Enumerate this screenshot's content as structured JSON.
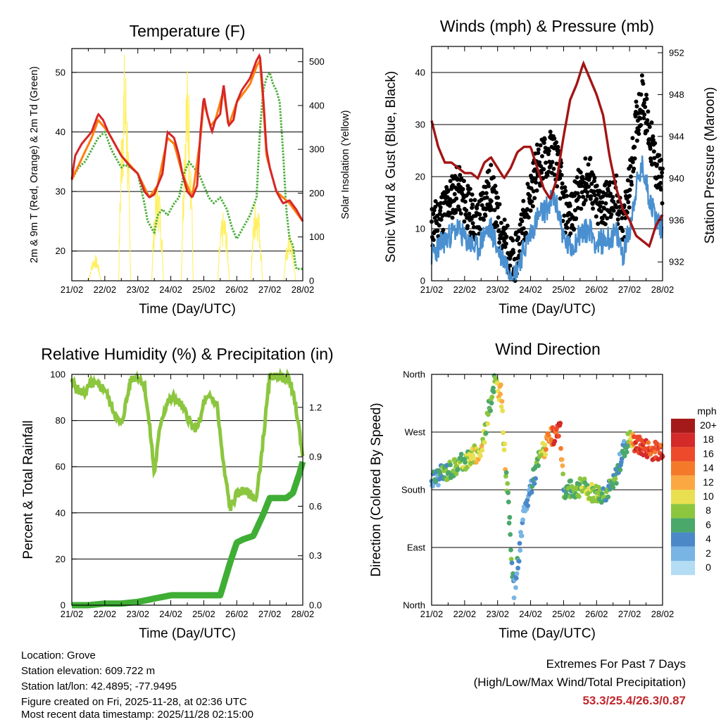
{
  "chart_data": [
    {
      "type": "line",
      "title": "Temperature (F)",
      "xlabel": "Time (Day/UTC)",
      "ylabel": "2m & 9m T (Red, Orange) & 2m Td (Green)",
      "y2label": "Solar Insolation (Yellow)",
      "categories": [
        "21/02",
        "22/02",
        "23/02",
        "24/02",
        "25/02",
        "26/02",
        "27/02",
        "28/02"
      ],
      "ylim": [
        15,
        54
      ],
      "yticks": [
        20,
        30,
        40,
        50
      ],
      "y2lim": [
        0,
        530
      ],
      "y2ticks": [
        0,
        100,
        200,
        300,
        400,
        500
      ],
      "series": [
        {
          "name": "2m T",
          "color": "#d62728",
          "x": [
            0,
            0.1,
            0.3,
            0.6,
            0.8,
            0.95,
            1.1,
            1.3,
            1.5,
            1.8,
            2.0,
            2.2,
            2.35,
            2.5,
            2.6,
            2.75,
            2.9,
            3.1,
            3.25,
            3.35,
            3.5,
            3.65,
            3.8,
            3.9,
            4.0,
            4.1,
            4.2,
            4.25,
            4.35,
            4.5,
            4.6,
            4.75,
            4.9,
            5.0,
            5.15,
            5.4,
            5.6,
            5.7,
            5.8,
            5.9,
            6.0,
            6.2,
            6.4,
            6.6,
            6.8,
            7.0
          ],
          "y": [
            32,
            36,
            38,
            40,
            43,
            42,
            40,
            38,
            36,
            34,
            33,
            30,
            29,
            29.5,
            31,
            33,
            40,
            39,
            36,
            33,
            30,
            29,
            31,
            40,
            46,
            43,
            41,
            40,
            42,
            43,
            48,
            41,
            42,
            45,
            47,
            49,
            52,
            53,
            46,
            37,
            34,
            30,
            28,
            28.5,
            27,
            25
          ]
        },
        {
          "name": "9m T",
          "color": "#ff7f0e",
          "x": [
            0,
            0.6,
            0.8,
            1.1,
            1.5,
            2.0,
            2.35,
            2.6,
            2.9,
            3.1,
            3.35,
            3.65,
            3.9,
            4.0,
            4.2,
            4.35,
            4.6,
            4.75,
            5.0,
            5.4,
            5.6,
            5.7,
            5.8,
            5.9,
            6.2,
            6.6,
            7.0
          ],
          "y": [
            32,
            39,
            42,
            40,
            36,
            33,
            29,
            31,
            39,
            38,
            33,
            29,
            39,
            45,
            41,
            42,
            47,
            41,
            45,
            48,
            51,
            52,
            45,
            36,
            30,
            28,
            25
          ]
        },
        {
          "name": "2m Td",
          "color": "#4caf3c",
          "x": [
            0,
            0.2,
            0.4,
            0.6,
            0.8,
            1.0,
            1.2,
            1.4,
            1.5,
            1.6,
            1.8,
            2.0,
            2.2,
            2.3,
            2.4,
            2.5,
            2.6,
            2.75,
            2.9,
            3.1,
            3.25,
            3.4,
            3.55,
            3.7,
            3.85,
            4.0,
            4.15,
            4.3,
            4.5,
            4.7,
            4.85,
            5.0,
            5.2,
            5.4,
            5.6,
            5.7,
            5.8,
            5.9,
            6.0,
            6.1,
            6.2,
            6.3,
            6.4,
            6.5,
            6.6,
            6.7,
            6.8,
            7.0
          ],
          "y": [
            32,
            34,
            35,
            37,
            39,
            40,
            37,
            35,
            34,
            34.5,
            34,
            33,
            28,
            25,
            24,
            23,
            26,
            27,
            26,
            28,
            29,
            33,
            35,
            34,
            33,
            31,
            29,
            28,
            29,
            27,
            24,
            22,
            24,
            26,
            29,
            40,
            47,
            49,
            50,
            48,
            47,
            45,
            37,
            27,
            22,
            21,
            17,
            17
          ]
        },
        {
          "name": "Solar Insolation",
          "color": "#fff060",
          "axis": "y2",
          "spikes": [
            {
              "day": 0.7,
              "peak": 60
            },
            {
              "day": 1.6,
              "peak": 530
            },
            {
              "day": 2.6,
              "peak": 240
            },
            {
              "day": 3.5,
              "peak": 500
            },
            {
              "day": 4.6,
              "peak": 160
            },
            {
              "day": 5.6,
              "peak": 200
            },
            {
              "day": 6.6,
              "peak": 110
            }
          ]
        }
      ]
    },
    {
      "type": "line",
      "title": "Winds (mph) & Pressure (mb)",
      "xlabel": "Time (Day/UTC)",
      "ylabel": "Sonic Wind & Gust (Blue, Black)",
      "y2label": "Station Pressure (Maroon)",
      "categories": [
        "21/02",
        "22/02",
        "23/02",
        "24/02",
        "25/02",
        "26/02",
        "27/02",
        "28/02"
      ],
      "ylim": [
        0,
        45
      ],
      "yticks": [
        0,
        10,
        20,
        30,
        40
      ],
      "y2lim": [
        930.2,
        952.6
      ],
      "y2ticks": [
        932,
        936,
        940,
        944,
        948,
        952
      ],
      "series": [
        {
          "name": "Sonic Wind",
          "color": "#4a90d0",
          "x": [
            0,
            0.3,
            0.6,
            0.8,
            1.0,
            1.2,
            1.4,
            1.6,
            1.8,
            2.0,
            2.2,
            2.5,
            2.8,
            3.0,
            3.2,
            3.5,
            3.7,
            3.9,
            4.0,
            4.2,
            4.5,
            4.8,
            5.0,
            5.3,
            5.6,
            5.8,
            6.0,
            6.2,
            6.4,
            6.6,
            6.8,
            7.0
          ],
          "y": [
            5,
            7,
            9,
            10,
            8,
            7,
            6,
            9,
            10,
            6,
            4,
            1,
            6,
            9,
            12,
            14,
            16,
            12,
            8,
            6,
            9,
            10,
            7,
            8,
            9,
            5,
            10,
            18,
            22,
            16,
            12,
            10
          ]
        },
        {
          "name": "Gust",
          "color": "#000000",
          "x": [
            0,
            0.3,
            0.6,
            0.8,
            1.0,
            1.2,
            1.4,
            1.6,
            1.8,
            2.0,
            2.2,
            2.5,
            2.8,
            3.0,
            3.2,
            3.5,
            3.7,
            3.9,
            4.0,
            4.2,
            4.5,
            4.8,
            5.0,
            5.3,
            5.6,
            5.8,
            6.0,
            6.2,
            6.4,
            6.6,
            6.8,
            7.0
          ],
          "y": [
            10,
            13,
            16,
            18,
            15,
            13,
            11,
            16,
            18,
            12,
            8,
            3,
            12,
            17,
            22,
            24,
            25,
            20,
            14,
            12,
            18,
            20,
            14,
            15,
            16,
            10,
            18,
            30,
            36,
            28,
            22,
            18
          ]
        },
        {
          "name": "Station Pressure",
          "color": "#a31515",
          "axis": "y2",
          "x": [
            0,
            0.2,
            0.4,
            0.6,
            0.8,
            1.0,
            1.2,
            1.4,
            1.6,
            1.8,
            2.0,
            2.2,
            2.4,
            2.6,
            2.8,
            3.0,
            3.2,
            3.4,
            3.6,
            3.8,
            4.0,
            4.2,
            4.4,
            4.6,
            4.8,
            5.0,
            5.2,
            5.4,
            5.6,
            5.8,
            6.0,
            6.2,
            6.4,
            6.6,
            6.8,
            7.0
          ],
          "y": [
            945.5,
            943,
            941.5,
            941.5,
            941,
            940.5,
            940.5,
            940,
            941.5,
            942,
            941,
            940,
            941,
            942.5,
            943,
            943,
            941,
            939,
            938,
            940,
            944,
            947.5,
            949,
            951,
            949.5,
            948,
            946,
            942,
            939,
            937,
            936,
            934.5,
            934,
            933.5,
            935.5,
            936.5
          ]
        }
      ]
    },
    {
      "type": "line",
      "title": "Relative Humidity (%) & Precipitation (in)",
      "xlabel": "Time (Day/UTC)",
      "ylabel": "Percent & Total Rainfall",
      "categories": [
        "21/02",
        "22/02",
        "23/02",
        "24/02",
        "25/02",
        "26/02",
        "27/02",
        "28/02"
      ],
      "ylim": [
        0,
        100
      ],
      "yticks": [
        0,
        20,
        40,
        60,
        80,
        100
      ],
      "y2lim": [
        0,
        1.4
      ],
      "y2ticks": [
        "0.0",
        "0.3",
        "0.6",
        "0.9",
        "1.2"
      ],
      "series": [
        {
          "name": "Relative Humidity",
          "color": "#8cc63f",
          "x": [
            0,
            0.2,
            0.4,
            0.6,
            0.8,
            1.0,
            1.15,
            1.4,
            1.5,
            1.6,
            1.8,
            2.0,
            2.2,
            2.4,
            2.5,
            2.7,
            2.9,
            3.1,
            3.3,
            3.5,
            3.7,
            3.9,
            4.0,
            4.2,
            4.4,
            4.6,
            4.8,
            5.0,
            5.2,
            5.4,
            5.6,
            5.8,
            6.0,
            6.2,
            6.4,
            6.6,
            6.8,
            7.0
          ],
          "y": [
            97,
            93,
            92,
            96,
            95,
            94,
            88,
            80,
            78,
            85,
            98,
            99,
            96,
            72,
            57,
            80,
            88,
            90,
            87,
            82,
            76,
            80,
            88,
            90,
            87,
            60,
            42,
            48,
            50,
            48,
            46,
            72,
            99,
            100,
            99,
            98,
            85,
            65
          ]
        },
        {
          "name": "Total Rainfall",
          "color": "#3fae35",
          "axis": "y2",
          "x": [
            0,
            0.5,
            1.0,
            1.5,
            2.0,
            2.5,
            3.0,
            3.5,
            4.0,
            4.5,
            4.8,
            5.0,
            5.2,
            5.5,
            5.8,
            6.0,
            6.3,
            6.5,
            6.7,
            6.9,
            7.0
          ],
          "y": [
            0,
            0,
            0.01,
            0.01,
            0.02,
            0.04,
            0.06,
            0.06,
            0.06,
            0.06,
            0.26,
            0.38,
            0.4,
            0.42,
            0.55,
            0.65,
            0.65,
            0.65,
            0.68,
            0.8,
            0.87
          ]
        }
      ]
    },
    {
      "type": "scatter",
      "title": "Wind Direction",
      "xlabel": "Time (Day/UTC)",
      "ylabel": "Direction (Colored By Speed)",
      "categories": [
        "21/02",
        "22/02",
        "23/02",
        "24/02",
        "25/02",
        "26/02",
        "27/02",
        "28/02"
      ],
      "ylim": [
        0,
        360
      ],
      "yticks": [
        "North",
        "East",
        "South",
        "West",
        "North"
      ],
      "colorbar": {
        "label": "mph",
        "ticks": [
          "20+",
          "18",
          "16",
          "14",
          "12",
          "10",
          "8",
          "6",
          "4",
          "2",
          "0"
        ],
        "colors": [
          "#a41a1a",
          "#d42a2a",
          "#ec4a2a",
          "#f47a2a",
          "#fca842",
          "#e8e050",
          "#8cc63f",
          "#4aa86a",
          "#4a88c8",
          "#78b4e4",
          "#b4dcf4"
        ]
      },
      "series": [
        {
          "name": "direction",
          "x": [
            0,
            0.5,
            1.0,
            1.5,
            1.9,
            2.1,
            2.5,
            2.8,
            3.0,
            3.3,
            3.6,
            3.9,
            4.0,
            4.3,
            4.6,
            4.9,
            5.2,
            5.5,
            5.8,
            6.0,
            6.2,
            6.5,
            6.8,
            7.0
          ],
          "y": [
            195,
            210,
            225,
            240,
            350,
            330,
            20,
            140,
            185,
            235,
            260,
            270,
            180,
            180,
            185,
            175,
            175,
            185,
            240,
            260,
            250,
            245,
            240,
            245
          ],
          "speed": [
            4,
            6,
            8,
            10,
            6,
            12,
            4,
            2,
            4,
            8,
            14,
            18,
            6,
            6,
            8,
            8,
            6,
            6,
            4,
            8,
            18,
            16,
            16,
            16
          ]
        }
      ]
    }
  ],
  "info": {
    "location": "Location: Grove",
    "elevation": "Station elevation: 609.722 m",
    "latlon": "Station lat/lon: 42.4895; -77.9495",
    "created": "Figure created on Fri, 2025-11-28, at 02:36 UTC",
    "timestamp": "Most recent data timestamp: 2025/11/28 02:15:00"
  },
  "extremes": {
    "title": "Extremes For Past 7 Days",
    "subtitle": "(High/Low/Max Wind/Total Precipitation)",
    "values": "53.3/25.4/26.3/0.87",
    "values_color": "#c1272d"
  }
}
